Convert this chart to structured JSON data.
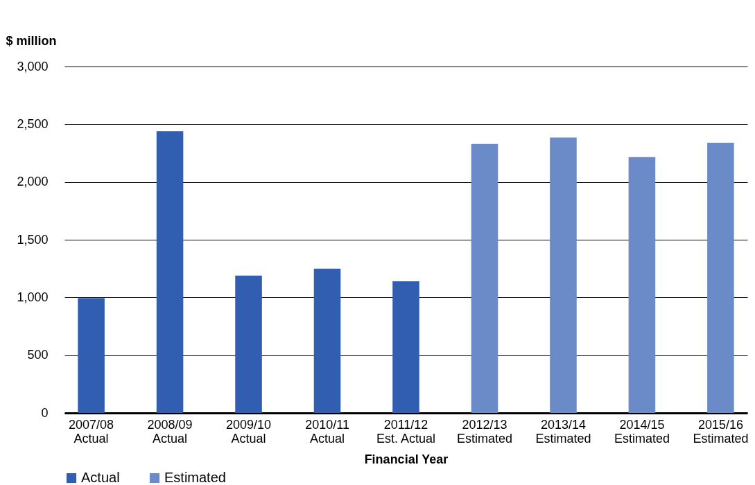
{
  "chart_data": {
    "type": "bar",
    "xlabel": "Financial Year",
    "ylabel": "$ million",
    "categories": [
      "2007/08\nActual",
      "2008/09\nActual",
      "2009/10\nActual",
      "2010/11\nActual",
      "2011/12\nEst. Actual",
      "2012/13\nEstimated",
      "2013/14\nEstimated",
      "2014/15\nEstimated",
      "2015/16\nEstimated"
    ],
    "series": [
      {
        "name": "Actual",
        "color": "#315eb0",
        "values": [
          995,
          2440,
          1190,
          1250,
          1140,
          null,
          null,
          null,
          null
        ]
      },
      {
        "name": "Estimated",
        "color": "#6a8ac8",
        "values": [
          null,
          null,
          null,
          null,
          null,
          2330,
          2385,
          2215,
          2340
        ]
      }
    ],
    "ylim": [
      0,
      3000
    ],
    "yticks": [
      {
        "value": 0,
        "label": "0"
      },
      {
        "value": 500,
        "label": "500"
      },
      {
        "value": 1000,
        "label": "1,000"
      },
      {
        "value": 1500,
        "label": "1,500"
      },
      {
        "value": 2000,
        "label": "2,000"
      },
      {
        "value": 2500,
        "label": "2,500"
      },
      {
        "value": 3000,
        "label": "3,000"
      }
    ],
    "grid": "y",
    "legend": "bottom"
  }
}
